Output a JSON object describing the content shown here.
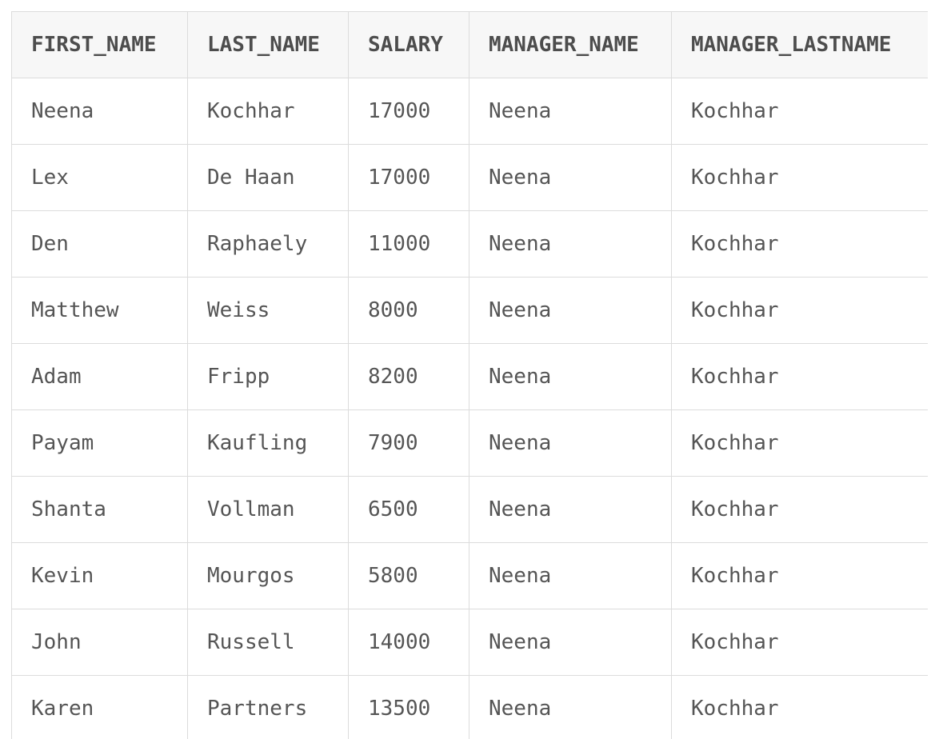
{
  "table": {
    "headers": [
      "FIRST_NAME",
      "LAST_NAME",
      "SALARY",
      "MANAGER_NAME",
      "MANAGER_LASTNAME"
    ],
    "rows": [
      [
        "Neena",
        "Kochhar",
        "17000",
        "Neena",
        "Kochhar"
      ],
      [
        "Lex",
        "De Haan",
        "17000",
        "Neena",
        "Kochhar"
      ],
      [
        "Den",
        "Raphaely",
        "11000",
        "Neena",
        "Kochhar"
      ],
      [
        "Matthew",
        "Weiss",
        "8000",
        "Neena",
        "Kochhar"
      ],
      [
        "Adam",
        "Fripp",
        "8200",
        "Neena",
        "Kochhar"
      ],
      [
        "Payam",
        "Kaufling",
        "7900",
        "Neena",
        "Kochhar"
      ],
      [
        "Shanta",
        "Vollman",
        "6500",
        "Neena",
        "Kochhar"
      ],
      [
        "Kevin",
        "Mourgos",
        "5800",
        "Neena",
        "Kochhar"
      ],
      [
        "John",
        "Russell",
        "14000",
        "Neena",
        "Kochhar"
      ],
      [
        "Karen",
        "Partners",
        "13500",
        "Neena",
        "Kochhar"
      ]
    ]
  }
}
